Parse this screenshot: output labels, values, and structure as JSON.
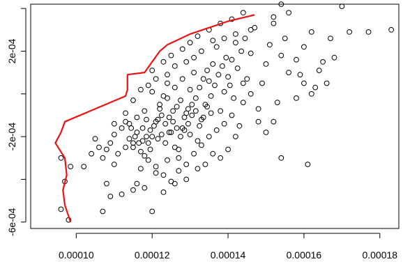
{
  "chart_data": {
    "type": "scatter",
    "title": "",
    "xlabel": "",
    "ylabel": "",
    "xlim": [
      8.8e-05,
      0.000185
    ],
    "ylim": [
      -0.00063,
      0.00042
    ],
    "x_ticks": [
      {
        "value": 0.0001,
        "label": "0.00010"
      },
      {
        "value": 0.00012,
        "label": "0.00012"
      },
      {
        "value": 0.00014,
        "label": "0.00014"
      },
      {
        "value": 0.00016,
        "label": "0.00016"
      },
      {
        "value": 0.00018,
        "label": "0.00018"
      }
    ],
    "y_ticks": [
      {
        "value": -0.0006,
        "label": "-6e-04"
      },
      {
        "value": -0.0002,
        "label": "-2e-04"
      },
      {
        "value": 0.0002,
        "label": "2e-04"
      }
    ],
    "y_minor_ticks": [
      -0.0004,
      0.0,
      0.0004
    ],
    "grid": false,
    "series": [
      {
        "kind": "points",
        "marker": "open-circle",
        "color": "#000000",
        "points": [
          [
            9.8e-05,
            -0.00059
          ],
          [
            9.6e-05,
            -0.00054
          ],
          [
            9.7e-05,
            -0.00041
          ],
          [
            9.85e-05,
            -0.00034
          ],
          [
            0.000102,
            -0.00034
          ],
          [
            9.6e-05,
            -0.0003
          ],
          [
            0.000104,
            -0.00028
          ],
          [
            0.000108,
            -0.00042
          ],
          [
            0.000107,
            -0.00055
          ],
          [
            0.000109,
            -0.00048
          ],
          [
            0.00011,
            -0.00033
          ],
          [
            0.000112,
            -0.00047
          ],
          [
            0.000115,
            -0.00045
          ],
          [
            0.000105,
            -0.00021
          ],
          [
            0.000108,
            -0.00026
          ],
          [
            0.00011,
            -0.00019
          ],
          [
            0.000112,
            -0.00016
          ],
          [
            0.000113,
            -9e-05
          ],
          [
            0.000114,
            -0.00021
          ],
          [
            0.000115,
            -0.00025
          ],
          [
            0.000116,
            -0.00042
          ],
          [
            0.000117,
            -0.00035
          ],
          [
            0.000118,
            -0.00029
          ],
          [
            0.000119,
            -0.00023
          ],
          [
            0.00012,
            -0.0002
          ],
          [
            0.000121,
            -0.00013
          ],
          [
            0.000122,
            -7e-05
          ],
          [
            0.000123,
            -1e-05
          ],
          [
            0.000124,
            5e-05
          ],
          [
            0.000125,
            -0.00018
          ],
          [
            0.000126,
            -0.00025
          ],
          [
            0.000127,
            -0.0003
          ],
          [
            0.000128,
            -0.00016
          ],
          [
            0.000129,
            -9e-05
          ],
          [
            0.00013,
            2e-05
          ],
          [
            0.000131,
            0.0001
          ],
          [
            0.000132,
            -0.00022
          ],
          [
            0.000133,
            -0.00012
          ],
          [
            0.000134,
            -5e-05
          ],
          [
            0.000135,
            6e-05
          ],
          [
            0.000136,
            0.00014
          ],
          [
            0.000137,
            0.00022
          ],
          [
            0.000138,
            -8e-05
          ],
          [
            0.000139,
            1e-05
          ],
          [
            0.00014,
            8e-05
          ],
          [
            0.000141,
            0.00016
          ],
          [
            0.000142,
            0.00024
          ],
          [
            0.000143,
            -0.00015
          ],
          [
            0.000144,
            -4e-05
          ],
          [
            0.000145,
            7e-05
          ],
          [
            0.000146,
            0.00019
          ],
          [
            0.000147,
            0.00031
          ],
          [
            0.000148,
            -0.00013
          ],
          [
            0.000149,
            5e-05
          ],
          [
            0.00015,
            0.00014
          ],
          [
            0.000151,
            0.00023
          ],
          [
            0.000152,
            0.00033
          ],
          [
            0.000153,
            -4e-05
          ],
          [
            0.000154,
            0.00018
          ],
          [
            0.000155,
            0.00026
          ],
          [
            0.000156,
            0.00038
          ],
          [
            0.000158,
            0.00016
          ],
          [
            0.000159,
            9e-05
          ],
          [
            0.00016,
            0.00022
          ],
          [
            0.000161,
            -0.00033
          ],
          [
            0.000162,
            0.00029
          ],
          [
            0.000163,
            3e-05
          ],
          [
            0.000165,
            0.00015
          ],
          [
            0.000167,
            0.00026
          ],
          [
            0.000168,
            0.00017
          ],
          [
            0.00017,
            0.00041
          ],
          [
            0.000172,
            0.00029
          ],
          [
            0.000177,
            0.00029
          ],
          [
            0.000183,
            0.0003
          ],
          [
            0.000154,
            0.00042
          ],
          [
            0.000152,
            0.00036
          ],
          [
            0.000146,
            0.0003
          ],
          [
            0.000142,
            0.00028
          ],
          [
            0.000139,
            0.00026
          ],
          [
            0.000136,
            0.00025
          ],
          [
            0.000133,
            0.0002
          ],
          [
            0.000131,
            0.00017
          ],
          [
            0.000129,
            0.00015
          ],
          [
            0.000126,
            0.00013
          ],
          [
            0.000124,
            9e-05
          ],
          [
            0.000121,
            7e-05
          ],
          [
            0.000119,
            4e-05
          ],
          [
            0.000117,
            2e-05
          ],
          [
            0.000115,
            -3e-05
          ],
          [
            0.000113,
            -0.00013
          ],
          [
            0.0001145,
            -0.00016
          ],
          [
            0.000116,
            -0.00018
          ],
          [
            0.0001175,
            -0.00022
          ],
          [
            0.0001185,
            -0.0002
          ],
          [
            0.0001195,
            -0.00017
          ],
          [
            0.0001205,
            -0.00015
          ],
          [
            0.0001215,
            -0.00012
          ],
          [
            0.0001225,
            -0.0001
          ],
          [
            0.0001235,
            -0.00014
          ],
          [
            0.0001245,
            -0.00011
          ],
          [
            0.0001255,
            -8e-05
          ],
          [
            0.0001265,
            -6e-05
          ],
          [
            0.0001275,
            -3e-05
          ],
          [
            0.0001285,
            -0.00011
          ],
          [
            0.0001295,
            -7e-05
          ],
          [
            0.0001305,
            -5e-05
          ],
          [
            0.0001315,
            -2e-05
          ],
          [
            0.0001325,
            3e-05
          ],
          [
            0.0001335,
            7e-05
          ],
          [
            0.0001345,
            0.00011
          ],
          [
            0.0001355,
            -1e-05
          ],
          [
            0.0001365,
            4e-05
          ],
          [
            0.0001375,
            9e-05
          ],
          [
            0.0001385,
            0.00013
          ],
          [
            0.0001395,
            0.00017
          ],
          [
            0.0001405,
            4e-05
          ],
          [
            0.0001415,
            -2e-05
          ],
          [
            0.0001425,
            0.00012
          ],
          [
            0.0001435,
            0.0002
          ],
          [
            0.0001445,
            0.00026
          ],
          [
            0.000113,
            -0.00025
          ],
          [
            0.000115,
            -0.00023
          ],
          [
            0.000117,
            -0.00027
          ],
          [
            0.000119,
            -0.00031
          ],
          [
            0.000121,
            -0.00034
          ],
          [
            0.000123,
            -0.00038
          ],
          [
            0.000125,
            -0.00041
          ],
          [
            0.000127,
            -0.00036
          ],
          [
            0.000129,
            -0.00033
          ],
          [
            0.000131,
            -0.00028
          ],
          [
            0.000133,
            -0.00024
          ],
          [
            0.000135,
            -0.0002
          ],
          [
            0.000137,
            -0.00017
          ],
          [
            0.000139,
            -0.00014
          ],
          [
            0.000141,
            -0.0001
          ],
          [
            0.00012,
            -0.00055
          ],
          [
            0.000123,
            -0.00046
          ],
          [
            0.000126,
            -0.00042
          ],
          [
            0.000129,
            -0.0004
          ],
          [
            0.000132,
            -0.00035
          ],
          [
            0.000118,
            -0.00044
          ],
          [
            0.000121,
            -0.00037
          ],
          [
            0.000124,
            -0.00031
          ],
          [
            0.000127,
            -0.00026
          ],
          [
            0.00013,
            -0.00019
          ],
          [
            0.00016,
            5e-05
          ],
          [
            0.000158,
            -2e-05
          ],
          [
            0.000156,
            0.0001
          ],
          [
            0.000162,
            0.0
          ],
          [
            0.000164,
            0.00011
          ],
          [
            0.000166,
            5e-05
          ],
          [
            0.00015,
            -0.00018
          ],
          [
            0.000148,
            -7e-05
          ],
          [
            0.000146,
            0.0
          ],
          [
            0.000144,
            5e-05
          ],
          [
            0.000152,
            -0.00013
          ],
          [
            0.000154,
            -0.0003
          ],
          [
            0.000142,
            -0.0002
          ],
          [
            0.00014,
            -0.00026
          ],
          [
            0.000138,
            -0.0003
          ],
          [
            0.000134,
            -0.00033
          ],
          [
            0.000136,
            -0.00028
          ],
          [
            0.000128,
            7e-05
          ],
          [
            0.000126,
            3e-05
          ],
          [
            0.000124,
            -2e-05
          ],
          [
            0.000122,
            -5e-05
          ],
          [
            0.00012,
            1e-05
          ],
          [
            0.000118,
            -8e-05
          ],
          [
            0.000116,
            -0.00011
          ],
          [
            0.000114,
            -0.00014
          ],
          [
            0.0001155,
            -0.0002
          ],
          [
            0.0001165,
            -0.00023
          ],
          [
            0.0001175,
            -0.00016
          ],
          [
            0.0001185,
            -0.00012
          ],
          [
            0.0001195,
            -0.00026
          ],
          [
            0.0001215,
            -0.00021
          ],
          [
            0.0001225,
            -0.00019
          ],
          [
            0.0001235,
            -0.00023
          ],
          [
            0.0001245,
            -0.00018
          ],
          [
            0.0001255,
            -0.00013
          ],
          [
            0.0001265,
            -0.00016
          ],
          [
            0.0001275,
            -0.0002
          ],
          [
            0.0001285,
            -0.00017
          ],
          [
            0.0001295,
            -0.00014
          ],
          [
            0.0001305,
            -0.0001
          ],
          [
            0.0001315,
            -8e-05
          ],
          [
            0.0001325,
            -0.00015
          ],
          [
            0.0001335,
            -0.00011
          ],
          [
            0.0001345,
            -6e-05
          ],
          [
            0.0001355,
            -9e-05
          ],
          [
            0.00012,
            0.00011
          ],
          [
            0.000123,
            0.00015
          ],
          [
            0.000125,
            0.00018
          ],
          [
            0.000128,
            0.00021
          ],
          [
            0.00013,
            0.00024
          ],
          [
            0.000132,
            0.00027
          ],
          [
            0.000135,
            0.0003
          ],
          [
            0.000138,
            0.00033
          ],
          [
            0.000141,
            0.00035
          ],
          [
            0.000144,
            0.00038
          ],
          [
            0.00011,
            -0.00014
          ],
          [
            0.000109,
            -0.00023
          ],
          [
            0.000107,
            -0.0003
          ],
          [
            0.000106,
            -0.00025
          ],
          [
            0.000111,
            -0.00028
          ]
        ]
      },
      {
        "kind": "line",
        "color": "#ee1111",
        "points": [
          [
            9.85e-05,
            -0.0006
          ],
          [
            9.7e-05,
            -0.00052
          ],
          [
            9.65e-05,
            -0.00045
          ],
          [
            9.75e-05,
            -0.00038
          ],
          [
            9.7e-05,
            -0.0003
          ],
          [
            9.45e-05,
            -0.00023
          ],
          [
            9.6e-05,
            -0.00018
          ],
          [
            9.7e-05,
            -0.00013
          ],
          [
            0.000113,
            -1e-05
          ],
          [
            0.0001135,
            2e-05
          ],
          [
            0.0001135,
            9e-05
          ],
          [
            0.000118,
            0.0001
          ],
          [
            0.00012,
            0.00015
          ],
          [
            0.000122,
            0.0002
          ],
          [
            0.000124,
            0.00023
          ],
          [
            0.00013,
            0.00028
          ],
          [
            0.00014,
            0.00034
          ],
          [
            0.000147,
            0.00037
          ]
        ]
      }
    ]
  }
}
